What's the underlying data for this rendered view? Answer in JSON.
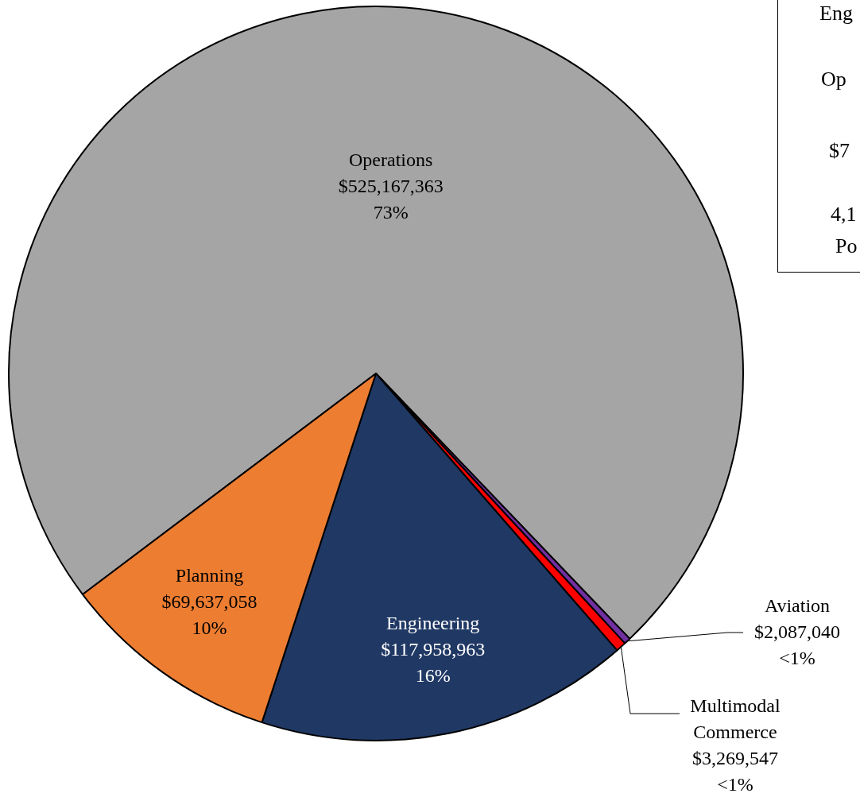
{
  "chart_data": {
    "type": "pie",
    "categories": [
      "Operations",
      "Aviation",
      "Multimodal Commerce",
      "Engineering",
      "Planning"
    ],
    "values": [
      525167363,
      2087040,
      3269547,
      117958963,
      69637058
    ],
    "colors": [
      "#a5a5a5",
      "#7030a0",
      "#ff0000",
      "#203864",
      "#ed7d31"
    ],
    "value_labels": [
      "$525,167,363\n73%",
      "$2,087,040\n<1%",
      "$3,269,547\n<1%",
      "$117,958,963\n16%",
      "$69,637,058\n10%"
    ],
    "annotations": [
      "Eng",
      "Op",
      "$7",
      "4,1",
      "Po"
    ]
  }
}
